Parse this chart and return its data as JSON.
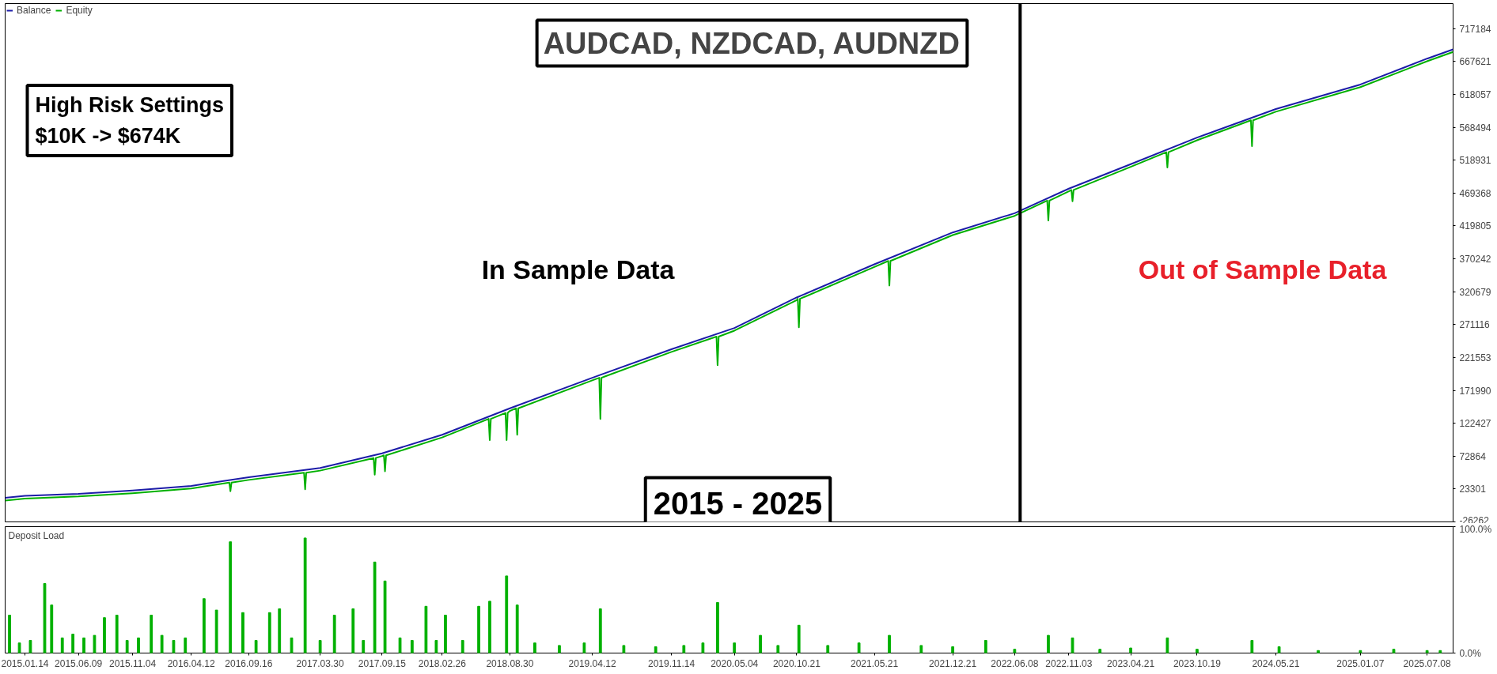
{
  "chart_data": [
    {
      "type": "line",
      "title": "AUDCAD, NZDCAD, AUDNZD",
      "annotations": [
        "High Risk Settings\n$10K -> $674K",
        "In Sample Data",
        "Out of Sample Data",
        "2015 - 2025"
      ],
      "xlim": [
        "2014-11-21",
        "2025-09-17"
      ],
      "ylim": [
        -26262,
        755000
      ],
      "yticks": [
        -26262,
        23301,
        72864,
        122427,
        171990,
        221553,
        271116,
        320679,
        370242,
        419805,
        469368,
        518931,
        568494,
        618057,
        667621,
        717184
      ],
      "tick_labels": "y",
      "legend": "top left",
      "ref_lines": [
        {
          "axis": "x",
          "value": "2022-06-23",
          "color": "#000000"
        }
      ],
      "series": [
        {
          "name": "Balance",
          "color": "#1c1ca8",
          "x": [
            "2014-11-21",
            "2015-01-14",
            "2015-06-09",
            "2015-11-04",
            "2016-04-12",
            "2016-09-16",
            "2017-03-30",
            "2017-09-15",
            "2018-02-26",
            "2018-08-30",
            "2019-04-12",
            "2019-11-14",
            "2020-05-04",
            "2020-10-21",
            "2021-05-21",
            "2021-12-21",
            "2022-06-08",
            "2022-11-03",
            "2023-04-21",
            "2023-10-19",
            "2024-05-21",
            "2025-01-07",
            "2025-07-08",
            "2025-09-17"
          ],
          "values": [
            10000,
            13000,
            16000,
            21000,
            28000,
            41000,
            55000,
            77000,
            105000,
            145000,
            191000,
            234000,
            266000,
            312000,
            362000,
            410000,
            439000,
            476000,
            513000,
            553000,
            596000,
            633000,
            672000,
            686000
          ]
        },
        {
          "name": "Equity",
          "color": "#00b000",
          "x": [
            "2014-11-21",
            "2015-01-14",
            "2015-06-09",
            "2015-11-04",
            "2016-04-12",
            "2016-07-25",
            "2016-07-28",
            "2016-07-31",
            "2016-09-16",
            "2017-02-14",
            "2017-02-17",
            "2017-02-20",
            "2017-03-30",
            "2017-08-23",
            "2017-08-26",
            "2017-08-29",
            "2017-09-15",
            "2017-09-20",
            "2017-09-23",
            "2017-09-26",
            "2018-02-26",
            "2018-07-03",
            "2018-07-06",
            "2018-07-09",
            "2018-08-18",
            "2018-08-21",
            "2018-08-24",
            "2018-08-30",
            "2018-09-16",
            "2018-09-19",
            "2018-09-22",
            "2019-04-12",
            "2019-05-01",
            "2019-05-04",
            "2019-05-07",
            "2019-11-14",
            "2020-03-16",
            "2020-03-19",
            "2020-03-22",
            "2020-05-04",
            "2020-10-21",
            "2020-10-24",
            "2020-10-27",
            "2020-10-30",
            "2021-05-21",
            "2021-06-28",
            "2021-07-01",
            "2021-07-04",
            "2021-12-21",
            "2022-06-08",
            "2022-09-05",
            "2022-09-08",
            "2022-09-11",
            "2022-11-03",
            "2022-11-10",
            "2022-11-13",
            "2022-11-16",
            "2023-04-21",
            "2023-07-27",
            "2023-07-30",
            "2023-08-02",
            "2023-10-19",
            "2024-03-14",
            "2024-03-17",
            "2024-03-20",
            "2024-05-21",
            "2025-01-07",
            "2025-07-08",
            "2025-09-17"
          ],
          "values": [
            6000,
            9000,
            12000,
            17000,
            24000,
            33000,
            20000,
            33000,
            37000,
            48000,
            23000,
            48000,
            51000,
            70000,
            45000,
            70000,
            73000,
            74000,
            50000,
            74000,
            101000,
            129000,
            97000,
            129000,
            138000,
            97000,
            138000,
            141000,
            145000,
            105000,
            145000,
            187000,
            191000,
            129000,
            191000,
            230000,
            253000,
            210000,
            253000,
            262000,
            308000,
            310000,
            267000,
            310000,
            358000,
            367000,
            330000,
            367000,
            406000,
            435000,
            458000,
            428000,
            458000,
            472000,
            474000,
            457000,
            474000,
            509000,
            531000,
            508000,
            531000,
            549000,
            579000,
            540000,
            579000,
            592000,
            629000,
            668000,
            682000
          ]
        }
      ]
    },
    {
      "type": "bar",
      "title": "Deposit Load",
      "xlim": [
        "2014-11-21",
        "2025-09-17"
      ],
      "ylim": [
        0,
        100
      ],
      "yticks": [
        {
          "value": 0,
          "label": "0.0%"
        },
        {
          "value": 100,
          "label": "100.0%"
        }
      ],
      "xticks": [
        {
          "value": "2015-01-14",
          "label": "2015.01.14"
        },
        {
          "value": "2015-06-09",
          "label": "2015.06.09"
        },
        {
          "value": "2015-11-04",
          "label": "2015.11.04"
        },
        {
          "value": "2016-04-12",
          "label": "2016.04.12"
        },
        {
          "value": "2016-09-16",
          "label": "2016.09.16"
        },
        {
          "value": "2017-03-30",
          "label": "2017.03.30"
        },
        {
          "value": "2017-09-15",
          "label": "2017.09.15"
        },
        {
          "value": "2018-02-26",
          "label": "2018.02.26"
        },
        {
          "value": "2018-08-30",
          "label": "2018.08.30"
        },
        {
          "value": "2019-04-12",
          "label": "2019.04.12"
        },
        {
          "value": "2019-11-14",
          "label": "2019.11.14"
        },
        {
          "value": "2020-05-04",
          "label": "2020.05.04"
        },
        {
          "value": "2020-10-21",
          "label": "2020.10.21"
        },
        {
          "value": "2021-05-21",
          "label": "2021.05.21"
        },
        {
          "value": "2021-12-21",
          "label": "2021.12.21"
        },
        {
          "value": "2022-06-08",
          "label": "2022.06.08"
        },
        {
          "value": "2022-11-03",
          "label": "2022.11.03"
        },
        {
          "value": "2023-04-21",
          "label": "2023.04.21"
        },
        {
          "value": "2023-10-19",
          "label": "2023.10.19"
        },
        {
          "value": "2024-05-21",
          "label": "2024.05.21"
        },
        {
          "value": "2025-01-07",
          "label": "2025.01.07"
        },
        {
          "value": "2025-07-08",
          "label": "2025.07.08"
        }
      ],
      "series": [
        {
          "color": "#00b000",
          "x": [
            "2014-12-03",
            "2014-12-30",
            "2015-01-29",
            "2015-03-09",
            "2015-03-28",
            "2015-04-26",
            "2015-05-25",
            "2015-06-24",
            "2015-07-23",
            "2015-08-19",
            "2015-09-22",
            "2015-10-20",
            "2015-11-20",
            "2015-12-25",
            "2016-01-23",
            "2016-02-24",
            "2016-03-27",
            "2016-05-17",
            "2016-06-20",
            "2016-07-28",
            "2016-08-31",
            "2016-10-06",
            "2016-11-12",
            "2016-12-09",
            "2017-01-11",
            "2017-02-17",
            "2017-03-30",
            "2017-05-08",
            "2017-06-28",
            "2017-07-26",
            "2017-08-26",
            "2017-09-23",
            "2017-11-03",
            "2017-12-06",
            "2018-01-13",
            "2018-02-10",
            "2018-03-07",
            "2018-04-23",
            "2018-06-06",
            "2018-07-06",
            "2018-08-21",
            "2018-09-19",
            "2018-11-06",
            "2019-01-12",
            "2019-03-21",
            "2019-05-04",
            "2019-07-07",
            "2019-10-02",
            "2019-12-18",
            "2020-02-08",
            "2020-03-19",
            "2020-05-04",
            "2020-07-14",
            "2020-08-31",
            "2020-10-27",
            "2021-01-14",
            "2021-04-09",
            "2021-07-01",
            "2021-09-26",
            "2021-12-21",
            "2022-03-21",
            "2022-06-08",
            "2022-09-08",
            "2022-11-13",
            "2023-01-27",
            "2023-04-21",
            "2023-07-30",
            "2023-10-19",
            "2024-03-17",
            "2024-05-30",
            "2024-09-14",
            "2025-01-07",
            "2025-04-08",
            "2025-07-08",
            "2025-08-13"
          ],
          "values": [
            30,
            8,
            10,
            55,
            38,
            12,
            15,
            12,
            14,
            28,
            30,
            10,
            12,
            30,
            14,
            10,
            12,
            43,
            34,
            88,
            32,
            10,
            32,
            35,
            12,
            91,
            10,
            30,
            35,
            10,
            72,
            57,
            12,
            10,
            37,
            10,
            30,
            10,
            37,
            41,
            61,
            38,
            8,
            6,
            8,
            35,
            6,
            5,
            6,
            8,
            40,
            8,
            14,
            6,
            22,
            6,
            8,
            14,
            6,
            5,
            10,
            3,
            14,
            12,
            3,
            4,
            12,
            3,
            10,
            5,
            2,
            2,
            3,
            2,
            2
          ]
        }
      ]
    }
  ]
}
